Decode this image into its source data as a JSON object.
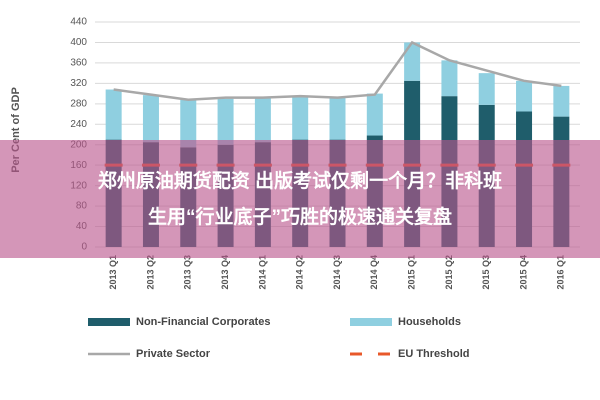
{
  "chart_data": {
    "type": "bar",
    "ylabel": "Per Cent of GDP",
    "categories": [
      "2013 Q1",
      "2013 Q2",
      "2013 Q3",
      "2013 Q4",
      "2014 Q1",
      "2014 Q2",
      "2014 Q3",
      "2014 Q4",
      "2015 Q1",
      "2015 Q2",
      "2015 Q3",
      "2015 Q4",
      "2016 Q1"
    ],
    "series": [
      {
        "name": "Non-Financial Corporates",
        "color": "#1f5d6b",
        "values": [
          210,
          205,
          195,
          200,
          205,
          210,
          210,
          218,
          325,
          295,
          278,
          265,
          255
        ]
      },
      {
        "name": "Households",
        "color": "#8fcfe0",
        "values": [
          98,
          92,
          93,
          90,
          87,
          85,
          82,
          82,
          75,
          70,
          62,
          60,
          60
        ]
      },
      {
        "name": "Private Sector",
        "type": "line",
        "color": "#a8a8a8",
        "values": [
          308,
          298,
          288,
          292,
          292,
          295,
          292,
          298,
          400,
          365,
          345,
          325,
          315
        ]
      },
      {
        "name": "EU Threshold",
        "type": "dashed",
        "color": "#e8582a",
        "values": [
          160,
          160,
          160,
          160,
          160,
          160,
          160,
          160,
          160,
          160,
          160,
          160,
          160
        ]
      }
    ],
    "ylim": [
      0,
      440
    ],
    "yticks": [
      0,
      40,
      80,
      120,
      160,
      200,
      240,
      280,
      320,
      360,
      400,
      440
    ],
    "grid": true
  },
  "banner": {
    "lines": [
      "郑州原油期货配资 出版考试仅剩一个月？非科班",
      "生用“行业底子”巧胜的极速通关复盘"
    ]
  }
}
